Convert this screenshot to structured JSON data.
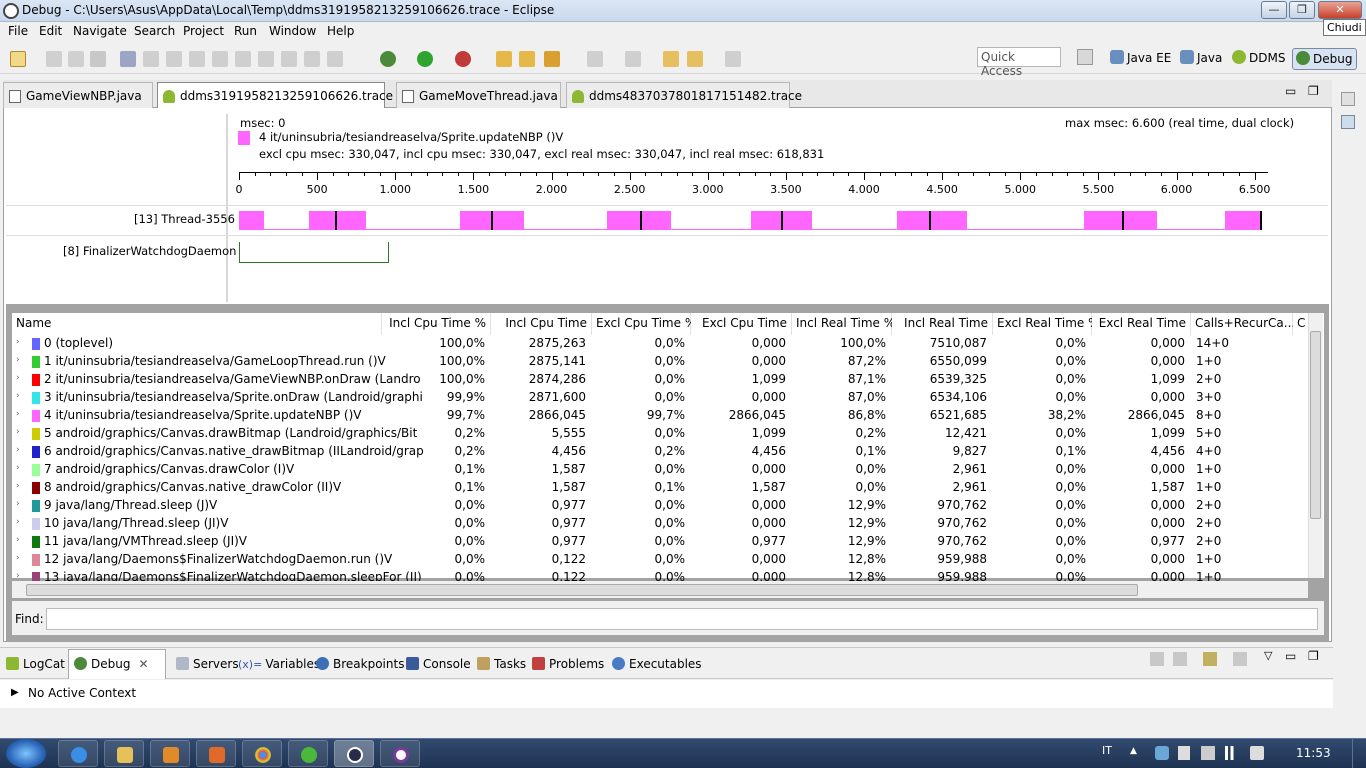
{
  "window": {
    "title": "Debug - C:\\Users\\Asus\\AppData\\Local\\Temp\\ddms3191958213259106626.trace - Eclipse",
    "tooltip": "Chiudi",
    "buttons": {
      "minimize": "—",
      "maximize": "❐",
      "close": "✕"
    }
  },
  "menu": [
    "File",
    "Edit",
    "Navigate",
    "Search",
    "Project",
    "Run",
    "Window",
    "Help"
  ],
  "quick_access": "Quick Access",
  "perspectives": [
    "Java EE",
    "Java",
    "DDMS",
    "Debug"
  ],
  "editor_tabs": [
    {
      "label": "GameViewNBP.java",
      "icon": "java-file-icon",
      "active": false
    },
    {
      "label": "ddms3191958213259106626.trace",
      "icon": "android-icon",
      "active": true
    },
    {
      "label": "GameMoveThread.java",
      "icon": "java-file-icon",
      "active": false
    },
    {
      "label": "ddms4837037801817151482.trace",
      "icon": "android-icon",
      "active": false
    }
  ],
  "timeline": {
    "msec": "msec: 0",
    "selected_method": "4 it/uninsubria/tesiandreaselva/Sprite.updateNBP ()V",
    "selected_color": "#ff66ff",
    "stats": "excl cpu msec: 330,047, incl cpu msec: 330,047, excl real msec: 330,047, incl real msec: 618,831",
    "max_msec": "max msec: 6.600 (real time, dual clock)",
    "ticks": [
      "0",
      "500",
      "1.000",
      "1.500",
      "2.000",
      "2.500",
      "3.000",
      "3.500",
      "4.000",
      "4.500",
      "5.000",
      "5.500",
      "6.000",
      "6.500"
    ],
    "threads": [
      "[13] Thread-3556",
      "[8] FinalizerWatchdogDaemon"
    ]
  },
  "profile": {
    "columns": [
      "Name",
      "Incl Cpu Time %",
      "Incl Cpu Time",
      "Excl Cpu Time %",
      "Excl Cpu Time",
      "Incl Real Time %",
      "Incl Real Time",
      "Excl Real Time %",
      "Excl Real Time",
      "Calls+RecurCa...",
      "C"
    ],
    "rows": [
      {
        "name": "0 (toplevel)",
        "color": "#6666ff",
        "v": [
          "100,0%",
          "2875,263",
          "0,0%",
          "0,000",
          "100,0%",
          "7510,087",
          "0,0%",
          "0,000",
          "14+0"
        ]
      },
      {
        "name": "1 it/uninsubria/tesiandreaselva/GameLoopThread.run ()V",
        "color": "#33cc33",
        "v": [
          "100,0%",
          "2875,141",
          "0,0%",
          "0,000",
          "87,2%",
          "6550,099",
          "0,0%",
          "0,000",
          "1+0"
        ]
      },
      {
        "name": "2 it/uninsubria/tesiandreaselva/GameViewNBP.onDraw (Landro",
        "color": "#ff0000",
        "v": [
          "100,0%",
          "2874,286",
          "0,0%",
          "1,099",
          "87,1%",
          "6539,325",
          "0,0%",
          "1,099",
          "2+0"
        ]
      },
      {
        "name": "3 it/uninsubria/tesiandreaselva/Sprite.onDraw (Landroid/graphi",
        "color": "#33e6e6",
        "v": [
          "99,9%",
          "2871,600",
          "0,0%",
          "0,000",
          "87,0%",
          "6534,106",
          "0,0%",
          "0,000",
          "3+0"
        ]
      },
      {
        "name": "4 it/uninsubria/tesiandreaselva/Sprite.updateNBP ()V",
        "color": "#ff66ff",
        "v": [
          "99,7%",
          "2866,045",
          "99,7%",
          "2866,045",
          "86,8%",
          "6521,685",
          "38,2%",
          "2866,045",
          "8+0"
        ]
      },
      {
        "name": "5 android/graphics/Canvas.drawBitmap (Landroid/graphics/Bit",
        "color": "#cccc00",
        "v": [
          "0,2%",
          "5,555",
          "0,0%",
          "1,099",
          "0,2%",
          "12,421",
          "0,0%",
          "1,099",
          "5+0"
        ]
      },
      {
        "name": "6 android/graphics/Canvas.native_drawBitmap (IILandroid/grap",
        "color": "#2222cc",
        "v": [
          "0,2%",
          "4,456",
          "0,2%",
          "4,456",
          "0,1%",
          "9,827",
          "0,1%",
          "4,456",
          "4+0"
        ]
      },
      {
        "name": "7 android/graphics/Canvas.drawColor (I)V",
        "color": "#99ff99",
        "v": [
          "0,1%",
          "1,587",
          "0,0%",
          "0,000",
          "0,0%",
          "2,961",
          "0,0%",
          "0,000",
          "1+0"
        ]
      },
      {
        "name": "8 android/graphics/Canvas.native_drawColor (II)V",
        "color": "#880000",
        "v": [
          "0,1%",
          "1,587",
          "0,1%",
          "1,587",
          "0,0%",
          "2,961",
          "0,0%",
          "1,587",
          "1+0"
        ]
      },
      {
        "name": "9 java/lang/Thread.sleep (J)V",
        "color": "#229999",
        "v": [
          "0,0%",
          "0,977",
          "0,0%",
          "0,000",
          "12,9%",
          "970,762",
          "0,0%",
          "0,000",
          "2+0"
        ]
      },
      {
        "name": "10 java/lang/Thread.sleep (JI)V",
        "color": "#ccccee",
        "v": [
          "0,0%",
          "0,977",
          "0,0%",
          "0,000",
          "12,9%",
          "970,762",
          "0,0%",
          "0,000",
          "2+0"
        ]
      },
      {
        "name": "11 java/lang/VMThread.sleep (JI)V",
        "color": "#117711",
        "v": [
          "0,0%",
          "0,977",
          "0,0%",
          "0,977",
          "12,9%",
          "970,762",
          "0,0%",
          "0,977",
          "2+0"
        ]
      },
      {
        "name": "12 java/lang/Daemons$FinalizerWatchdogDaemon.run ()V",
        "color": "#dd8899",
        "v": [
          "0,0%",
          "0,122",
          "0,0%",
          "0,000",
          "12,8%",
          "959,988",
          "0,0%",
          "0,000",
          "1+0"
        ]
      },
      {
        "name": "13 java/lang/Daemons$FinalizerWatchdogDaemon.sleepFor (JJ)",
        "color": "#994477",
        "v": [
          "0,0%",
          "0,122",
          "0,0%",
          "0,000",
          "12,8%",
          "959,988",
          "0,0%",
          "0,000",
          "1+0"
        ]
      }
    ]
  },
  "find_label": "Find:",
  "bottom_tabs": [
    "LogCat",
    "Debug",
    "Servers",
    "Variables",
    "Breakpoints",
    "Console",
    "Tasks",
    "Problems",
    "Executables"
  ],
  "debug_status": "No Active Context",
  "taskbar": {
    "language": "IT",
    "time": "11:53"
  }
}
